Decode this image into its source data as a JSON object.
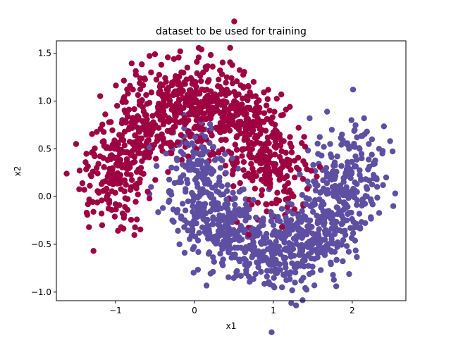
{
  "chart_data": {
    "type": "scatter",
    "title": "dataset to be used for training",
    "xlabel": "x1",
    "ylabel": "x2",
    "xlim": [
      -1.75,
      2.68
    ],
    "ylim": [
      -1.09,
      1.63
    ],
    "xticks": [
      -1,
      0,
      1,
      2
    ],
    "yticks": [
      -1.0,
      -0.5,
      0.0,
      0.5,
      1.0,
      1.5
    ],
    "xtick_labels": [
      "−1",
      "0",
      "1",
      "2"
    ],
    "ytick_labels": [
      "−1.0",
      "−0.5",
      "0.0",
      "0.5",
      "1.0",
      "1.5"
    ],
    "grid": false,
    "legend": "none",
    "series": [
      {
        "color": "#9e0142",
        "description": "upper half-moon (class 0), noisy arc centred near (0,0) with radius 1, about 1000 points",
        "points": [
          [
            -1.62,
            0.24
          ],
          [
            -1.5,
            0.55
          ],
          [
            -1.42,
            0.14
          ],
          [
            -1.38,
            0.36
          ],
          [
            -1.35,
            -0.08
          ],
          [
            -1.3,
            0.46
          ],
          [
            -1.28,
            -0.16
          ],
          [
            -1.24,
            0.3
          ],
          [
            -1.21,
            0.05
          ],
          [
            -1.19,
            0.71
          ],
          [
            -1.17,
            -0.3
          ],
          [
            -1.15,
            0.58
          ],
          [
            -1.13,
            0.86
          ],
          [
            -1.1,
            0.21
          ],
          [
            -1.08,
            -0.04
          ],
          [
            -1.06,
            0.78
          ],
          [
            -1.04,
            0.42
          ],
          [
            -1.01,
            -0.21
          ],
          [
            -0.98,
            0.95
          ],
          [
            -0.96,
            0.16
          ],
          [
            -0.93,
            -0.32
          ],
          [
            -0.92,
            0.64
          ],
          [
            -0.9,
            1.02
          ],
          [
            -0.88,
            -0.11
          ],
          [
            -0.85,
            0.31
          ],
          [
            -0.83,
            0.91
          ],
          [
            -0.81,
            0.07
          ],
          [
            -0.78,
            1.12
          ],
          [
            -0.75,
            0.52
          ],
          [
            -0.73,
            -0.24
          ],
          [
            -0.71,
            0.83
          ],
          [
            -0.69,
            0.18
          ],
          [
            -0.66,
            1.17
          ],
          [
            -0.63,
            0.41
          ],
          [
            -0.6,
            0.97
          ],
          [
            -0.57,
            -0.02
          ],
          [
            -0.55,
            1.3
          ],
          [
            -0.53,
            0.72
          ],
          [
            -0.5,
            1.49
          ],
          [
            -0.47,
            0.63
          ],
          [
            -0.45,
            1.08
          ],
          [
            -0.42,
            1.38
          ],
          [
            -0.4,
            0.84
          ],
          [
            -0.36,
            1.2
          ],
          [
            -0.32,
            1.02
          ],
          [
            -0.29,
            0.67
          ],
          [
            -0.26,
            1.44
          ],
          [
            -0.24,
            1.26
          ],
          [
            -0.21,
            0.93
          ],
          [
            -0.18,
            1.52
          ],
          [
            -0.15,
            1.11
          ],
          [
            -0.12,
            0.76
          ],
          [
            -0.09,
            1.35
          ],
          [
            -0.06,
            1.0
          ],
          [
            -0.03,
            1.22
          ],
          [
            0.0,
            0.9
          ],
          [
            0.03,
            1.41
          ],
          [
            0.05,
            1.09
          ],
          [
            0.08,
            0.81
          ],
          [
            0.11,
            1.3
          ],
          [
            0.14,
            1.03
          ],
          [
            0.17,
            1.2
          ],
          [
            0.2,
            0.86
          ],
          [
            0.23,
            1.36
          ],
          [
            0.26,
            1.07
          ],
          [
            0.29,
            0.9
          ],
          [
            0.32,
            1.15
          ],
          [
            0.35,
            1.28
          ],
          [
            0.38,
            0.95
          ],
          [
            0.41,
            1.12
          ],
          [
            0.44,
            0.82
          ],
          [
            0.47,
            1.24
          ],
          [
            0.5,
            0.99
          ],
          [
            0.53,
            0.73
          ],
          [
            0.56,
            1.07
          ],
          [
            0.59,
            0.88
          ],
          [
            0.62,
            1.15
          ],
          [
            0.64,
            0.62
          ],
          [
            0.67,
            0.93
          ],
          [
            0.7,
            0.78
          ],
          [
            0.73,
            1.05
          ],
          [
            0.76,
            0.55
          ],
          [
            0.79,
            0.86
          ],
          [
            0.82,
            0.4
          ],
          [
            0.85,
            0.7
          ],
          [
            0.88,
            1.09
          ],
          [
            0.9,
            0.26
          ],
          [
            0.93,
            0.57
          ],
          [
            0.96,
            0.14
          ],
          [
            0.99,
            0.83
          ],
          [
            1.02,
            0.44
          ],
          [
            1.05,
            0.04
          ],
          [
            1.08,
            0.65
          ],
          [
            1.12,
            0.31
          ],
          [
            1.16,
            0.91
          ],
          [
            1.19,
            -0.02
          ],
          [
            1.23,
            0.52
          ],
          [
            1.27,
            0.2
          ],
          [
            1.32,
            0.72
          ],
          [
            1.38,
            0.37
          ],
          [
            1.43,
            0.08
          ],
          [
            1.48,
            0.27
          ],
          [
            1.55,
            0.21
          ],
          [
            1.59,
            0.31
          ],
          [
            1.36,
            0.56
          ]
        ]
      },
      {
        "color": "#5e4fa2",
        "description": "lower half-moon (class 1), noisy arc centred near (1,0.5) with radius 1, about 1000 points",
        "points": [
          [
            -0.55,
            0.1
          ],
          [
            -0.48,
            0.32
          ],
          [
            -0.4,
            -0.12
          ],
          [
            -0.36,
            0.45
          ],
          [
            -0.3,
            0.05
          ],
          [
            -0.28,
            -0.25
          ],
          [
            -0.22,
            0.38
          ],
          [
            -0.19,
            -0.5
          ],
          [
            -0.17,
            0.15
          ],
          [
            -0.13,
            -0.32
          ],
          [
            -0.1,
            0.56
          ],
          [
            -0.08,
            -0.05
          ],
          [
            -0.05,
            0.28
          ],
          [
            -0.02,
            -0.55
          ],
          [
            0.01,
            0.62
          ],
          [
            0.04,
            0.1
          ],
          [
            0.06,
            -0.38
          ],
          [
            0.09,
            0.45
          ],
          [
            0.12,
            -0.15
          ],
          [
            0.15,
            0.25
          ],
          [
            0.18,
            -0.6
          ],
          [
            0.21,
            0.02
          ],
          [
            0.24,
            0.52
          ],
          [
            0.27,
            -0.42
          ],
          [
            0.3,
            -0.1
          ],
          [
            0.33,
            0.3
          ],
          [
            0.36,
            -0.72
          ],
          [
            0.39,
            -0.3
          ],
          [
            0.42,
            0.12
          ],
          [
            0.45,
            -0.55
          ],
          [
            0.48,
            0.4
          ],
          [
            0.51,
            -0.2
          ],
          [
            0.54,
            -0.78
          ],
          [
            0.57,
            0.05
          ],
          [
            0.6,
            -0.45
          ],
          [
            0.63,
            -0.65
          ],
          [
            0.66,
            -0.12
          ],
          [
            0.69,
            -0.84
          ],
          [
            0.72,
            -0.35
          ],
          [
            0.75,
            -0.58
          ],
          [
            0.78,
            -0.22
          ],
          [
            0.81,
            -0.74
          ],
          [
            0.84,
            -0.48
          ],
          [
            0.87,
            -0.3
          ],
          [
            0.9,
            -0.66
          ],
          [
            0.93,
            -0.55
          ],
          [
            0.96,
            -0.92
          ],
          [
            0.99,
            -0.4
          ],
          [
            1.02,
            -0.7
          ],
          [
            1.05,
            -0.25
          ],
          [
            1.08,
            -0.58
          ],
          [
            1.11,
            -0.95
          ],
          [
            1.14,
            -0.48
          ],
          [
            1.17,
            -0.8
          ],
          [
            1.2,
            -0.35
          ],
          [
            1.23,
            -0.62
          ],
          [
            1.26,
            -0.44
          ],
          [
            1.29,
            -0.72
          ],
          [
            1.32,
            -0.22
          ],
          [
            1.35,
            -0.55
          ],
          [
            1.38,
            -0.85
          ],
          [
            1.41,
            -0.38
          ],
          [
            1.44,
            -0.62
          ],
          [
            1.47,
            -0.1
          ],
          [
            1.5,
            -0.45
          ],
          [
            1.52,
            -0.93
          ],
          [
            1.55,
            -0.2
          ],
          [
            1.58,
            -0.52
          ],
          [
            1.61,
            0.05
          ],
          [
            1.64,
            -0.3
          ],
          [
            1.67,
            0.3
          ],
          [
            1.7,
            -0.15
          ],
          [
            1.72,
            0.55
          ],
          [
            1.75,
            0.1
          ],
          [
            1.78,
            -0.38
          ],
          [
            1.81,
            0.42
          ],
          [
            1.84,
            -0.05
          ],
          [
            1.87,
            0.65
          ],
          [
            1.9,
            0.2
          ],
          [
            1.93,
            -0.25
          ],
          [
            1.96,
            0.5
          ],
          [
            1.99,
            0.8
          ],
          [
            2.01,
            1.12
          ],
          [
            2.03,
            0.32
          ],
          [
            2.06,
            0.62
          ],
          [
            2.09,
            -0.18
          ],
          [
            2.12,
            0.4
          ],
          [
            2.15,
            0.82
          ],
          [
            2.18,
            0.1
          ],
          [
            2.21,
            0.55
          ],
          [
            2.24,
            -0.05
          ],
          [
            2.27,
            0.35
          ],
          [
            2.31,
            0.18
          ],
          [
            2.34,
            0.5
          ],
          [
            2.39,
            0.12
          ],
          [
            2.43,
            0.2
          ],
          [
            2.48,
            0.58
          ],
          [
            2.52,
            -0.1
          ],
          [
            1.46,
            0.82
          ],
          [
            1.64,
            0.52
          ]
        ]
      }
    ]
  }
}
